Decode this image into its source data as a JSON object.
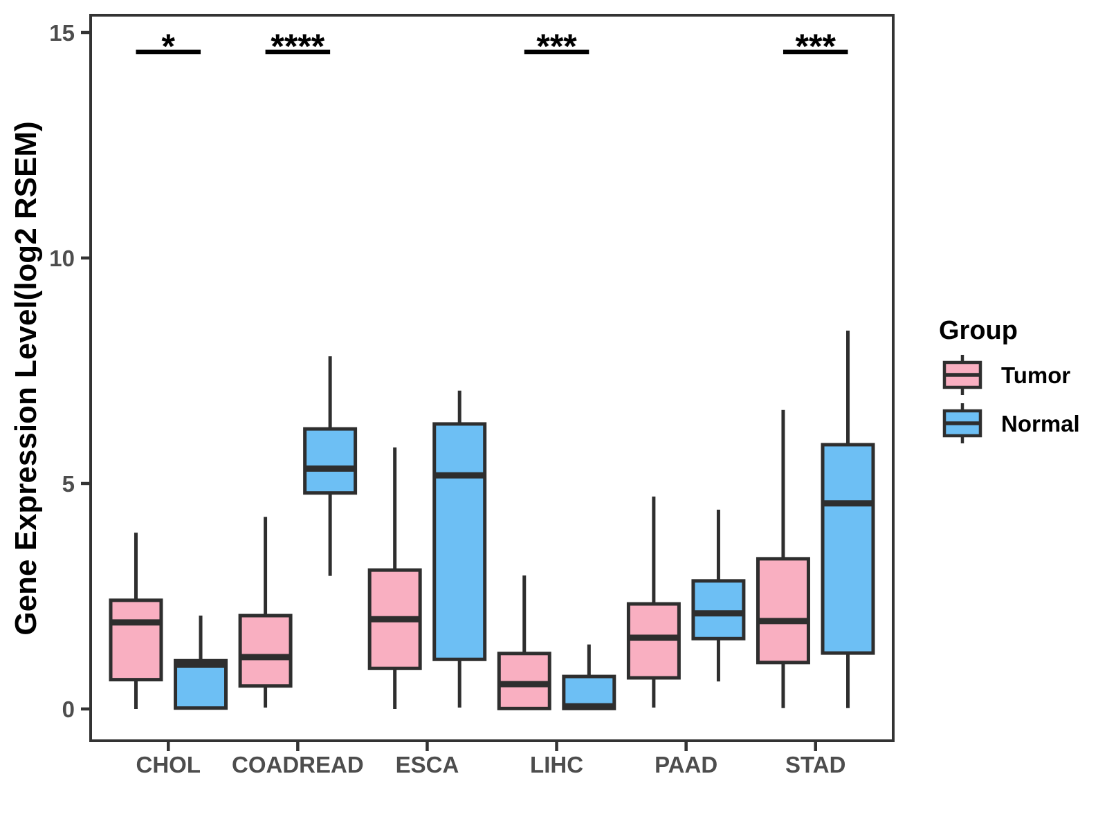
{
  "chart_data": {
    "type": "box",
    "title": "",
    "xlabel": "",
    "ylabel": "Gene Expression Level(log2 RSEM)",
    "ylim": [
      -0.7,
      15.4
    ],
    "yticks": [
      0,
      5,
      10,
      15
    ],
    "grid": "off",
    "categories": [
      "CHOL",
      "COADREAD",
      "ESCA",
      "LIHC",
      "PAAD",
      "STAD"
    ],
    "groups": [
      {
        "name": "Tumor",
        "color": "#F9AFC1"
      },
      {
        "name": "Normal",
        "color": "#6DBFF4"
      }
    ],
    "legend": {
      "title": "Group",
      "position": "right"
    },
    "boxes": [
      {
        "category": "CHOL",
        "group": "Tumor",
        "whisker_low": 0.0,
        "q1": 0.65,
        "median": 1.92,
        "q3": 2.41,
        "whisker_high": 3.91
      },
      {
        "category": "CHOL",
        "group": "Normal",
        "whisker_low": 0.0,
        "q1": 0.02,
        "median": 0.98,
        "q3": 1.07,
        "whisker_high": 2.07
      },
      {
        "category": "COADREAD",
        "group": "Tumor",
        "whisker_low": 0.03,
        "q1": 0.51,
        "median": 1.15,
        "q3": 2.07,
        "whisker_high": 4.26
      },
      {
        "category": "COADREAD",
        "group": "Normal",
        "whisker_low": 2.95,
        "q1": 4.79,
        "median": 5.33,
        "q3": 6.21,
        "whisker_high": 7.82
      },
      {
        "category": "ESCA",
        "group": "Tumor",
        "whisker_low": 0.0,
        "q1": 0.9,
        "median": 1.99,
        "q3": 3.08,
        "whisker_high": 5.8
      },
      {
        "category": "ESCA",
        "group": "Normal",
        "whisker_low": 0.03,
        "q1": 1.1,
        "median": 5.18,
        "q3": 6.32,
        "whisker_high": 7.06
      },
      {
        "category": "LIHC",
        "group": "Tumor",
        "whisker_low": 0.0,
        "q1": 0.01,
        "median": 0.55,
        "q3": 1.23,
        "whisker_high": 2.96
      },
      {
        "category": "LIHC",
        "group": "Normal",
        "whisker_low": 0.0,
        "q1": 0.01,
        "median": 0.06,
        "q3": 0.72,
        "whisker_high": 1.43
      },
      {
        "category": "PAAD",
        "group": "Tumor",
        "whisker_low": 0.03,
        "q1": 0.69,
        "median": 1.58,
        "q3": 2.33,
        "whisker_high": 4.71
      },
      {
        "category": "PAAD",
        "group": "Normal",
        "whisker_low": 0.61,
        "q1": 1.56,
        "median": 2.12,
        "q3": 2.84,
        "whisker_high": 4.42
      },
      {
        "category": "STAD",
        "group": "Tumor",
        "whisker_low": 0.02,
        "q1": 1.03,
        "median": 1.95,
        "q3": 3.33,
        "whisker_high": 6.63
      },
      {
        "category": "STAD",
        "group": "Normal",
        "whisker_low": 0.02,
        "q1": 1.24,
        "median": 4.56,
        "q3": 5.86,
        "whisker_high": 8.39
      }
    ],
    "significance": [
      {
        "category": "CHOL",
        "label": "*"
      },
      {
        "category": "COADREAD",
        "label": "****"
      },
      {
        "category": "LIHC",
        "label": "***"
      },
      {
        "category": "STAD",
        "label": "***"
      }
    ],
    "style": {
      "box_stroke": "#2e2e2e",
      "axis_color": "#333333",
      "tick_label_color": "#4d4d4d",
      "sig_color": "#000000",
      "background": "#ffffff"
    }
  }
}
